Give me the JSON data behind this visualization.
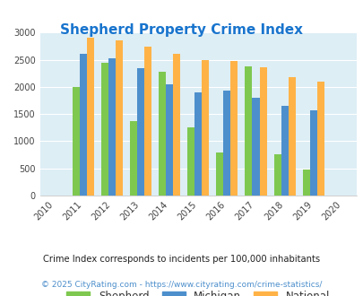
{
  "title": "Shepherd Property Crime Index",
  "title_color": "#1874cd",
  "all_years": [
    2010,
    2011,
    2012,
    2013,
    2014,
    2015,
    2016,
    2017,
    2018,
    2019,
    2020
  ],
  "bar_years": [
    2011,
    2012,
    2013,
    2014,
    2015,
    2016,
    2017,
    2018,
    2019
  ],
  "shepherd": [
    2000,
    2450,
    1375,
    2275,
    1260,
    790,
    2375,
    750,
    480
  ],
  "michigan": [
    2600,
    2525,
    2350,
    2050,
    1900,
    1930,
    1800,
    1650,
    1570
  ],
  "national": [
    2900,
    2850,
    2740,
    2600,
    2500,
    2475,
    2360,
    2180,
    2100
  ],
  "shepherd_color": "#7ec850",
  "michigan_color": "#4d8fcc",
  "national_color": "#ffb347",
  "plot_bg": "#ddeef5",
  "ylim": [
    0,
    3000
  ],
  "yticks": [
    0,
    500,
    1000,
    1500,
    2000,
    2500,
    3000
  ],
  "footnote1": "Crime Index corresponds to incidents per 100,000 inhabitants",
  "footnote2": "© 2025 CityRating.com - https://www.cityrating.com/crime-statistics/",
  "footnote1_color": "#222222",
  "footnote2_color": "#4d8fcc",
  "legend_labels": [
    "Shepherd",
    "Michigan",
    "National"
  ],
  "bar_width": 0.25
}
